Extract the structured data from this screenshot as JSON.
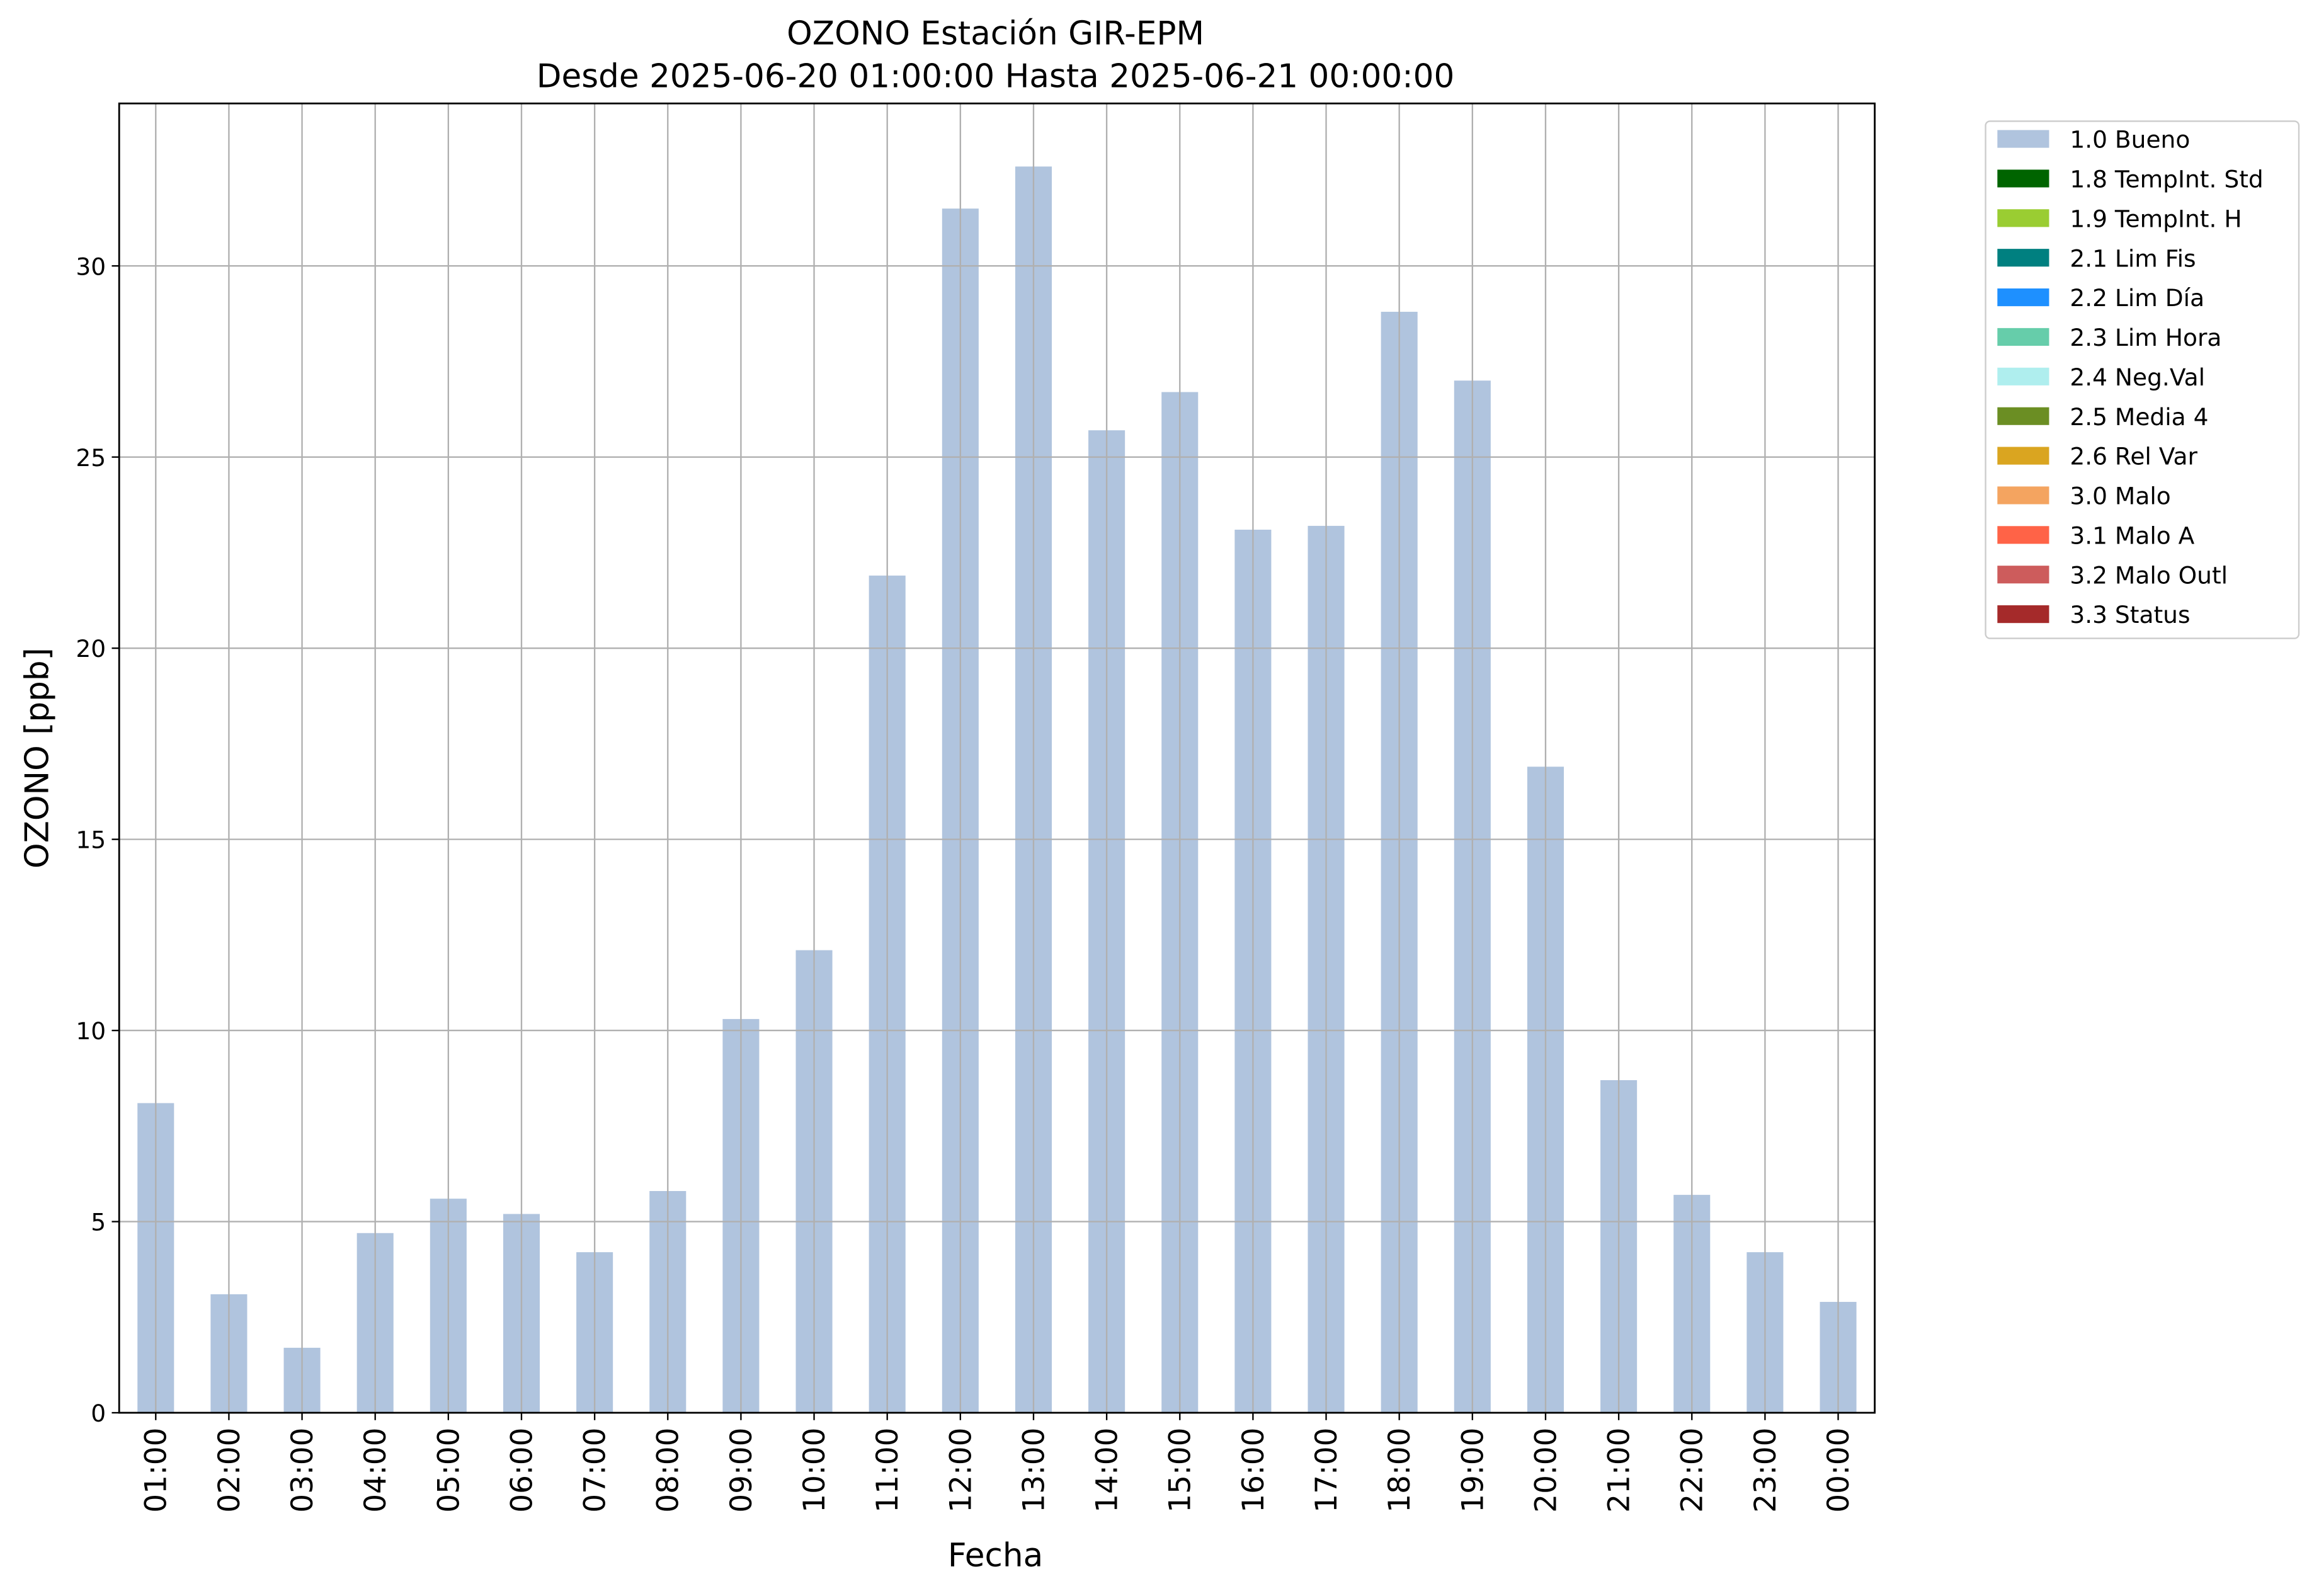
{
  "chart_data": {
    "type": "bar",
    "title": "OZONO Estación GIR-EPM",
    "subtitle": "Desde 2025-06-20 01:00:00 Hasta 2025-06-21 00:00:00",
    "x_label": "Fecha",
    "y_label": "OZONO [ppb]",
    "categories": [
      "01:00",
      "02:00",
      "03:00",
      "04:00",
      "05:00",
      "06:00",
      "07:00",
      "08:00",
      "09:00",
      "10:00",
      "11:00",
      "12:00",
      "13:00",
      "14:00",
      "15:00",
      "16:00",
      "17:00",
      "18:00",
      "19:00",
      "20:00",
      "21:00",
      "22:00",
      "23:00",
      "00:00"
    ],
    "series": [
      {
        "name": "1.0 Bueno",
        "color": "#b0c4de",
        "values": [
          8.1,
          3.1,
          1.7,
          4.7,
          5.6,
          5.2,
          4.2,
          5.8,
          10.3,
          12.1,
          21.9,
          31.5,
          32.6,
          25.7,
          26.7,
          23.1,
          23.2,
          28.8,
          27.0,
          16.9,
          8.7,
          5.7,
          4.2,
          2.9
        ]
      },
      {
        "name": "1.8 TempInt. Std",
        "color": "#006400"
      },
      {
        "name": "1.9 TempInt. H",
        "color": "#9acd32"
      },
      {
        "name": "2.1 Lim Fis",
        "color": "#008080"
      },
      {
        "name": "2.2 Lim Día",
        "color": "#1e90ff"
      },
      {
        "name": "2.3 Lim Hora",
        "color": "#66cdaa"
      },
      {
        "name": "2.4 Neg.Val",
        "color": "#afeeee"
      },
      {
        "name": "2.5 Media 4",
        "color": "#6b8e23"
      },
      {
        "name": "2.6 Rel Var",
        "color": "#daa520"
      },
      {
        "name": "3.0 Malo",
        "color": "#f4a460"
      },
      {
        "name": "3.1 Malo A",
        "color": "#ff6347"
      },
      {
        "name": "3.2 Malo Outl",
        "color": "#cd5c5c"
      },
      {
        "name": "3.3 Status",
        "color": "#a52a2a"
      }
    ],
    "ylim": [
      0,
      34.25
    ],
    "yticks": [
      0,
      5,
      10,
      15,
      20,
      25,
      30
    ],
    "grid": true,
    "stacked": true,
    "legend": "outside-right"
  }
}
